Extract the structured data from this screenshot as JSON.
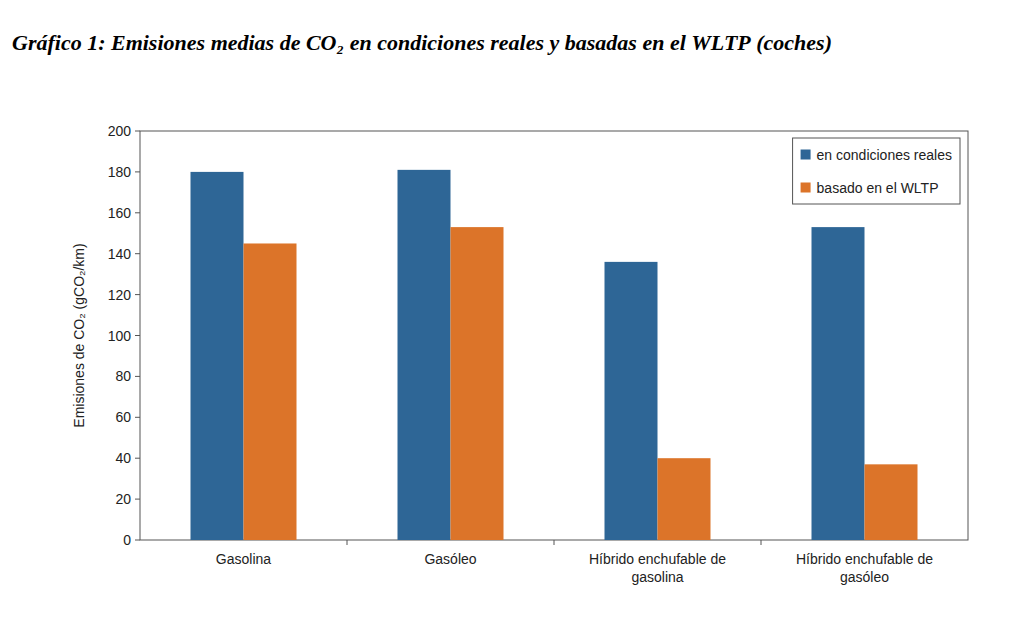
{
  "chart_data": {
    "type": "bar",
    "title": "Gráfico 1: Emisiones medias de CO₂ en condiciones reales y basadas en el WLTP (coches)",
    "y_label": "Emisiones de CO₂ (gCO₂/km)",
    "categories": [
      "Gasolina",
      "Gasóleo",
      "Híbrido enchufable de gasolina",
      "Híbrido enchufable de gasóleo"
    ],
    "series": [
      {
        "name": "en condiciones reales",
        "color": "#2e6696",
        "values": [
          180,
          181,
          136,
          153
        ]
      },
      {
        "name": "basado en el WLTP",
        "color": "#dc7429",
        "values": [
          145,
          153,
          40,
          37
        ]
      }
    ],
    "ylim": [
      0,
      200
    ],
    "yticks": [
      0,
      20,
      40,
      60,
      80,
      100,
      120,
      140,
      160,
      180,
      200
    ],
    "grid": false,
    "legend": "upper right"
  }
}
